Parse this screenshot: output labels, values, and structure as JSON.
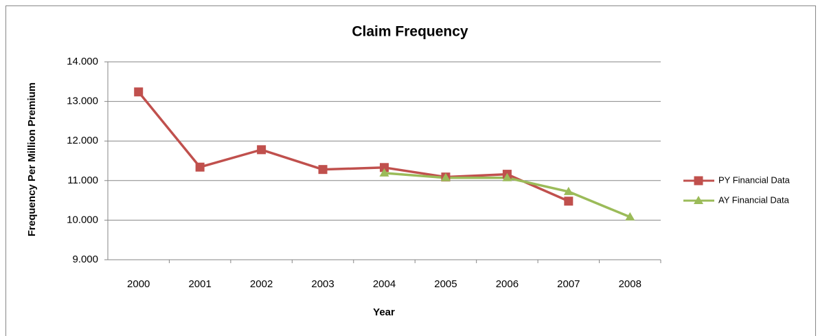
{
  "chart_data": {
    "type": "line",
    "title": "Claim Frequency",
    "x_label": "Year",
    "y_label": "Frequency Per Million Premium",
    "categories": [
      "2000",
      "2001",
      "2002",
      "2003",
      "2004",
      "2005",
      "2006",
      "2007",
      "2008"
    ],
    "series": [
      {
        "name": "PY Financial Data",
        "color": "#c0504d",
        "marker": "square",
        "values": [
          13.24,
          11.34,
          11.78,
          11.28,
          11.33,
          11.09,
          11.16,
          10.48,
          null
        ]
      },
      {
        "name": "AY Financial Data",
        "color": "#9bbb59",
        "marker": "triangle",
        "values": [
          null,
          null,
          null,
          null,
          11.19,
          11.07,
          11.07,
          10.72,
          10.08
        ]
      }
    ],
    "ylim": [
      9,
      14
    ],
    "yticks": [
      {
        "value": 9,
        "label": "9.000"
      },
      {
        "value": 10,
        "label": "10.000"
      },
      {
        "value": 11,
        "label": "11.000"
      },
      {
        "value": 12,
        "label": "12.000"
      },
      {
        "value": 13,
        "label": "13.000"
      },
      {
        "value": 14,
        "label": "14.000"
      }
    ],
    "grid": true,
    "legend": "right"
  }
}
